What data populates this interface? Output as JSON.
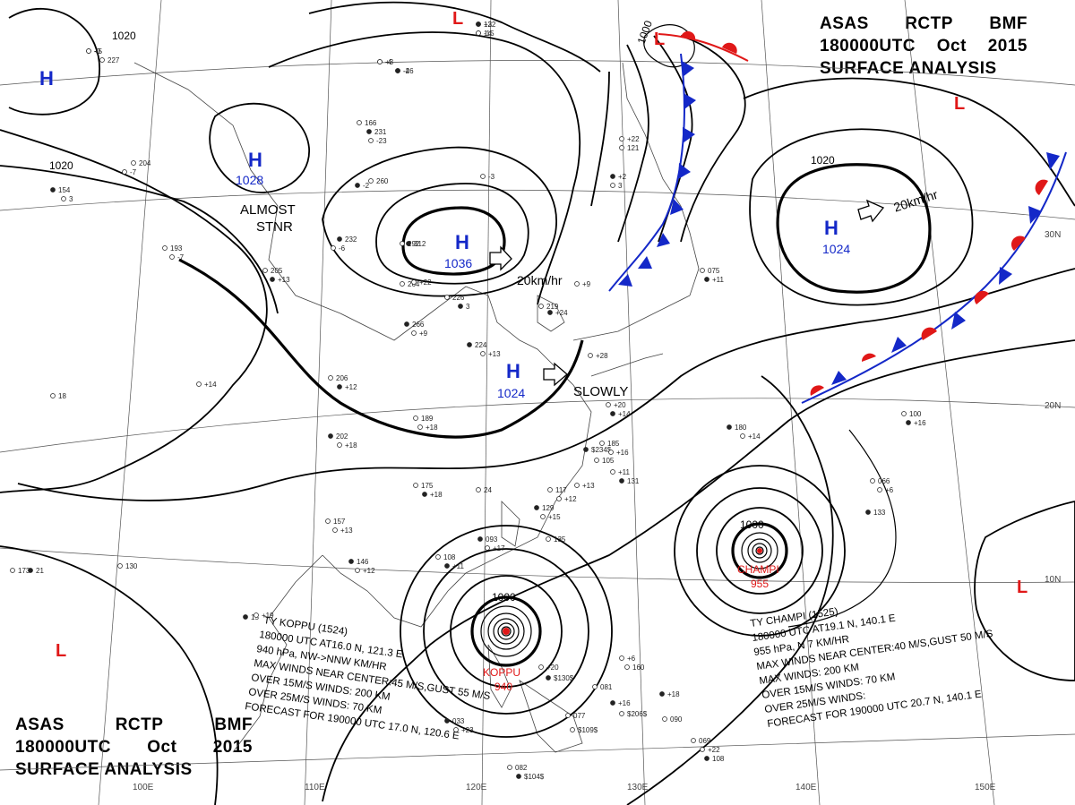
{
  "header_top": {
    "line1": [
      "ASAS",
      "RCTP",
      "BMF"
    ],
    "line2": [
      "180000UTC",
      "Oct",
      "2015"
    ],
    "line3": "SURFACE ANALYSIS"
  },
  "header_bottom": {
    "line1": [
      "ASAS",
      "RCTP",
      "BMF"
    ],
    "line2": [
      "180000UTC",
      "Oct",
      "2015"
    ],
    "line3": "SURFACE ANALYSIS"
  },
  "pressure_systems": {
    "h1": {
      "symbol": "H",
      "value": ""
    },
    "h2": {
      "symbol": "H",
      "value": "1028"
    },
    "h3": {
      "symbol": "H",
      "value": "1036"
    },
    "h4": {
      "symbol": "H",
      "value": "1024"
    },
    "h5": {
      "symbol": "H",
      "value": "1024"
    },
    "l1": {
      "symbol": "L"
    },
    "l2": {
      "symbol": "L"
    },
    "l3": {
      "symbol": "L"
    },
    "l4": {
      "symbol": "L"
    },
    "l5": {
      "symbol": "L"
    }
  },
  "motion_labels": {
    "almost": "ALMOST",
    "stnr": "STNR",
    "speed_west": "20km/hr",
    "speed_east": "20km/hr",
    "slowly": "SLOWLY"
  },
  "isobar_labels": {
    "a": "1020",
    "b": "1020",
    "c": "1020",
    "d": "1000",
    "e": "1000",
    "f": "1000"
  },
  "typhoons": {
    "koppu": {
      "name": "KOPPU",
      "pressure": "940",
      "bulletin": [
        "TY  KOPPU  (1524)",
        "180000 UTC  AT16.0 N, 121.3 E",
        "940 hPa, NW->NNW  KM/HR",
        "MAX WINDS NEAR CENTER:45 M/S,GUST 55 M/S",
        "OVER 15M/S WINDS: 200 KM",
        "OVER 25M/S WINDS: 70 KM",
        "FORECAST FOR 190000 UTC 17.0 N, 120.6 E"
      ]
    },
    "champi": {
      "name": "CHAMPI",
      "pressure": "955",
      "bulletin": [
        "TY  CHAMPI  (1525)",
        "180000 UTC  AT19.1 N, 140.1 E",
        "955 hPa, N 7 KM/HR",
        "MAX WINDS NEAR CENTER:40 M/S,GUST 50 M/S",
        "MAX WINDS: 200 KM",
        "OVER 15M/S WINDS: 70 KM",
        "OVER 25M/S WINDS:",
        "FORECAST FOR 190000 UTC 20.7 N, 140.1 E"
      ]
    }
  },
  "graticule_labels": {
    "lon": [
      "100E",
      "110E",
      "120E",
      "130E",
      "140E",
      "150E"
    ],
    "lat": [
      "30N",
      "20N",
      "10N"
    ]
  },
  "station_plots": [
    "122",
    "-15",
    "-4",
    "-26",
    "-0",
    "227",
    "232",
    "-6",
    "166",
    "231",
    "-23",
    "260",
    "-2",
    "-3",
    "292",
    "312",
    "204",
    "-7",
    "154",
    "3",
    "226",
    "3",
    "264",
    "+22",
    "266",
    "+9",
    "205",
    "+13",
    "193",
    "-7",
    "224",
    "+13",
    "219",
    "+24",
    "+14",
    "206",
    "+12",
    "189",
    "+18",
    "202",
    "+18",
    "175",
    "+18",
    "157",
    "+13",
    "146",
    "+12",
    "130",
    "15",
    "+19",
    "173",
    "21",
    "18",
    "24",
    "093",
    "+17",
    "108",
    "+11",
    "117",
    "+12",
    "129",
    "+15",
    "135",
    "$234$",
    "105",
    "+11",
    "131",
    "+13",
    "+20",
    "+14",
    "185",
    "+16",
    "180",
    "+14",
    "100",
    "+16",
    "066",
    "+6",
    "133",
    "+6",
    "160",
    "+16",
    "$206$",
    "081",
    "+18",
    "090",
    "+20",
    "$130$",
    "077",
    "$109$",
    "033",
    "+23",
    "082",
    "$104$",
    "069",
    "+22",
    "108",
    "+22",
    "121",
    "+2",
    "3",
    "075",
    "+11",
    "+9",
    "+28",
    "+3",
    "14",
    "+3",
    "-4",
    "+5"
  ],
  "colors": {
    "high": "#1428c8",
    "low": "#e01818",
    "cold_front": "#1428c8",
    "warm_front": "#e01818"
  }
}
